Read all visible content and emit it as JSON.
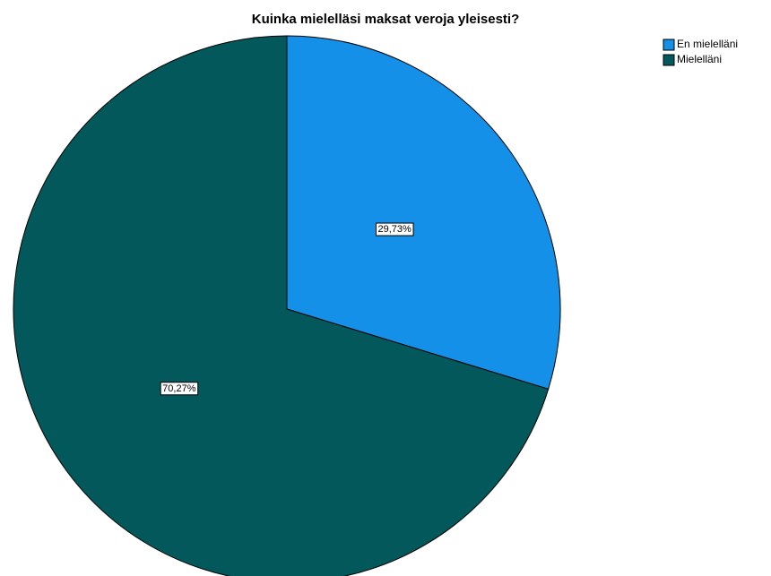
{
  "chart_data": {
    "type": "pie",
    "title": "Kuinka mielelläsi maksat veroja yleisesti?",
    "categories": [
      "En mielelläni",
      "Mielelläni"
    ],
    "values": [
      29.73,
      70.27
    ],
    "value_labels": [
      "29,73%",
      "70,27%"
    ],
    "colors": [
      "#1490e8",
      "#02585a"
    ],
    "legend": "top-right"
  }
}
